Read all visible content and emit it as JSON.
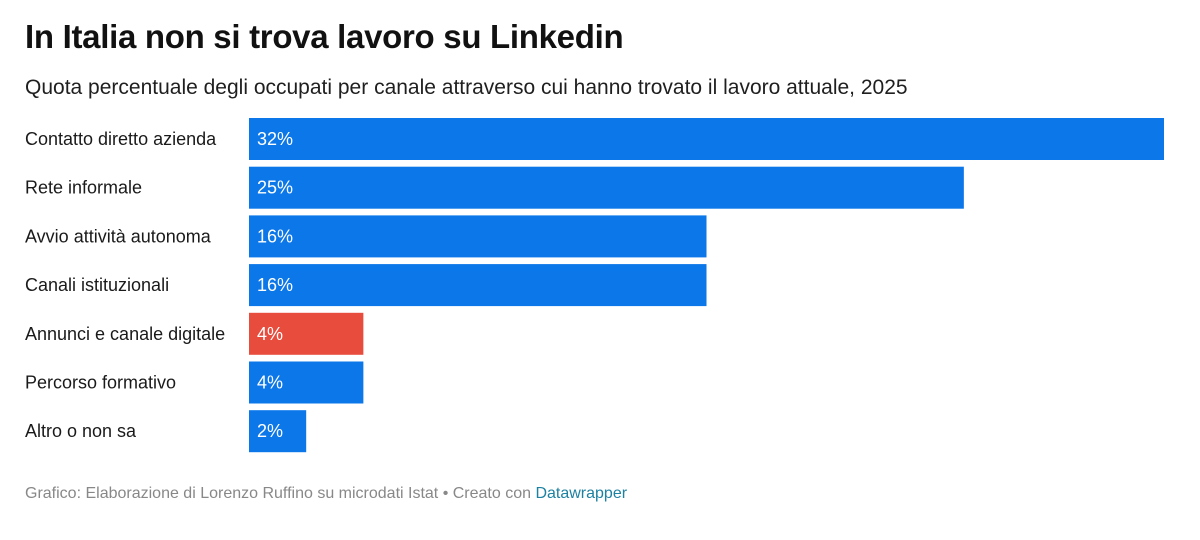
{
  "header": {
    "title": "In Italia non si trova lavoro su Linkedin",
    "subtitle": "Quota percentuale degli occupati per canale attraverso cui hanno trovato il lavoro attuale, 2025"
  },
  "footer": {
    "source": "Grafico: Elaborazione di Lorenzo Ruffino su microdati Istat • Creato con ",
    "link": "Datawrapper"
  },
  "colors": {
    "default_bar": "#0b77e9",
    "highlight_bar": "#e84c3d"
  },
  "chart_data": {
    "type": "bar",
    "orientation": "horizontal",
    "title": "In Italia non si trova lavoro su Linkedin",
    "subtitle": "Quota percentuale degli occupati per canale attraverso cui hanno trovato il lavoro attuale, 2025",
    "categories": [
      "Contatto diretto azienda",
      "Rete informale",
      "Avvio attività autonoma",
      "Canali istituzionali",
      "Annunci e canale digitale",
      "Percorso formativo",
      "Altro o non sa"
    ],
    "values": [
      32,
      25,
      16,
      16,
      4,
      4,
      2
    ],
    "value_labels": [
      "32%",
      "25%",
      "16%",
      "16%",
      "4%",
      "4%",
      "2%"
    ],
    "highlight": [
      false,
      false,
      false,
      false,
      true,
      false,
      false
    ],
    "xlim": [
      0,
      32
    ],
    "grid": false,
    "legend": "none"
  }
}
